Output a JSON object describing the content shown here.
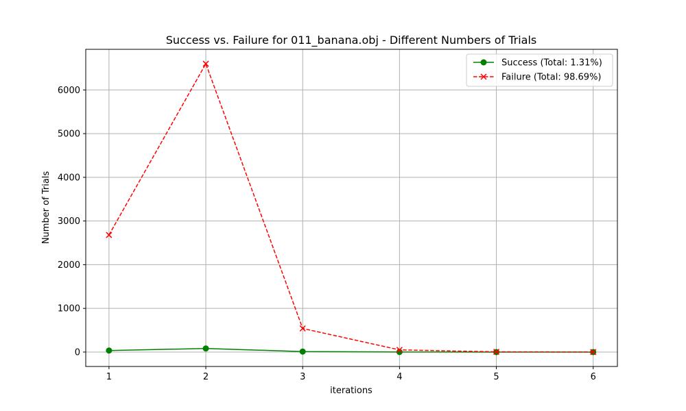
{
  "chart_data": {
    "type": "line",
    "title": "Success vs. Failure for 011_banana.obj - Different Numbers of Trials",
    "xlabel": "iterations",
    "ylabel": "Number of Trials",
    "x": [
      1,
      2,
      3,
      4,
      5,
      6
    ],
    "xticks": [
      "1",
      "2",
      "3",
      "4",
      "5",
      "6"
    ],
    "yticks": [
      "0",
      "1000",
      "2000",
      "3000",
      "4000",
      "5000",
      "6000"
    ],
    "xlim": [
      0.76,
      6.25
    ],
    "ylim": [
      -330,
      6930
    ],
    "grid": true,
    "legend_position": "top-right",
    "series": [
      {
        "name": "Success (Total: 1.31%)",
        "values": [
          35,
          82,
          12,
          2,
          0,
          0
        ],
        "color": "#008000",
        "line_style": "solid",
        "marker": "circle"
      },
      {
        "name": "Failure (Total: 98.69%)",
        "values": [
          2680,
          6600,
          540,
          50,
          5,
          0
        ],
        "color": "#ff0000",
        "line_style": "dashed",
        "marker": "x"
      }
    ]
  }
}
